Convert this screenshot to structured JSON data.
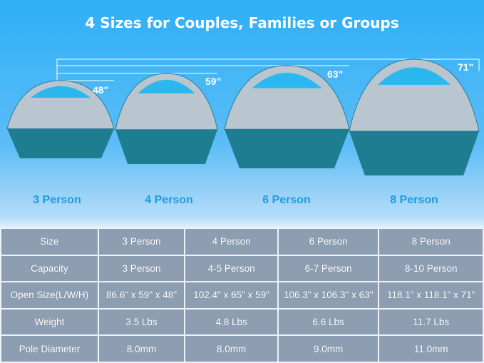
{
  "title": "4 Sizes for Couples, Families or Groups",
  "heights": [
    "48\"",
    "59\"",
    "63\"",
    "71\""
  ],
  "sizes": [
    "3 Person",
    "4 Person",
    "6 Person",
    "8 Person"
  ],
  "colors": {
    "tent_top": "#2bb8ee",
    "tent_floor": "#1f7d92",
    "tent_wall": "#b9c6cf",
    "label": "#1f9de0",
    "table_bg": "#8d9db2"
  },
  "table": {
    "rows": [
      {
        "label": "Size",
        "values": [
          "3 Person",
          "4 Person",
          "6 Person",
          "8 Person"
        ]
      },
      {
        "label": "Capacity",
        "values": [
          "3 Person",
          "4-5 Person",
          "6-7 Person",
          "8-10 Person"
        ]
      },
      {
        "label": "Open Size(L/W/H)",
        "values": [
          "86.6\" x 59\" x 48\"",
          "102.4\" x 65\" x 59\"",
          "106.3\" x 106.3\" x 63\"",
          "118.1\" x 118.1\" x 71\""
        ]
      },
      {
        "label": "Weight",
        "values": [
          "3.5 Lbs",
          "4.8 Lbs",
          "6.6 Lbs",
          "11.7 Lbs"
        ]
      },
      {
        "label": "Pole Diameter",
        "values": [
          "8.0mm",
          "8.0mm",
          "9.0mm",
          "11.0mm"
        ]
      }
    ]
  }
}
